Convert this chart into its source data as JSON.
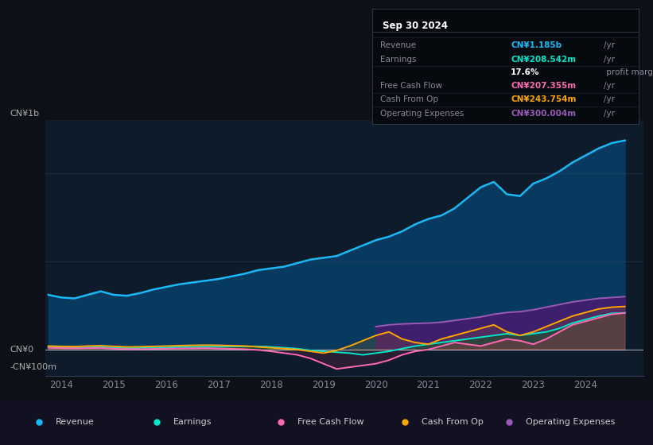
{
  "bg_color": "#0d1117",
  "plot_bg_color": "#0d1b2a",
  "ylabel_top": "CN¥1b",
  "ylabel_zero": "CN¥0",
  "ylabel_neg": "-CN¥100m",
  "xmin": 2013.7,
  "xmax": 2025.1,
  "ymin": -150,
  "ymax": 1300,
  "legend": [
    {
      "label": "Revenue",
      "color": "#1ab8f5"
    },
    {
      "label": "Earnings",
      "color": "#00e5cc"
    },
    {
      "label": "Free Cash Flow",
      "color": "#ff69b4"
    },
    {
      "label": "Cash From Op",
      "color": "#ffa500"
    },
    {
      "label": "Operating Expenses",
      "color": "#9b59b6"
    }
  ],
  "years": [
    2013.75,
    2014.0,
    2014.25,
    2014.5,
    2014.75,
    2015.0,
    2015.25,
    2015.5,
    2015.75,
    2016.0,
    2016.25,
    2016.5,
    2016.75,
    2017.0,
    2017.25,
    2017.5,
    2017.75,
    2018.0,
    2018.25,
    2018.5,
    2018.75,
    2019.0,
    2019.25,
    2019.5,
    2019.75,
    2020.0,
    2020.25,
    2020.5,
    2020.75,
    2021.0,
    2021.25,
    2021.5,
    2021.75,
    2022.0,
    2022.25,
    2022.5,
    2022.75,
    2023.0,
    2023.25,
    2023.5,
    2023.75,
    2024.0,
    2024.25,
    2024.5,
    2024.75
  ],
  "revenue": [
    310,
    295,
    290,
    310,
    330,
    310,
    305,
    320,
    340,
    355,
    370,
    380,
    390,
    400,
    415,
    430,
    450,
    460,
    470,
    490,
    510,
    520,
    530,
    560,
    590,
    620,
    640,
    670,
    710,
    740,
    760,
    800,
    860,
    920,
    950,
    880,
    870,
    940,
    970,
    1010,
    1060,
    1100,
    1140,
    1170,
    1185
  ],
  "earnings": [
    15,
    12,
    10,
    12,
    14,
    10,
    8,
    9,
    11,
    12,
    14,
    15,
    16,
    16,
    17,
    18,
    18,
    15,
    10,
    5,
    -5,
    -10,
    -15,
    -20,
    -30,
    -20,
    -10,
    5,
    20,
    30,
    40,
    50,
    60,
    70,
    80,
    90,
    80,
    90,
    100,
    120,
    150,
    170,
    190,
    205,
    208
  ],
  "free_cash_flow": [
    10,
    8,
    7,
    8,
    9,
    5,
    3,
    2,
    4,
    5,
    6,
    7,
    8,
    6,
    4,
    2,
    -2,
    -10,
    -20,
    -30,
    -50,
    -80,
    -110,
    -100,
    -90,
    -80,
    -60,
    -30,
    -10,
    0,
    20,
    40,
    30,
    20,
    40,
    60,
    50,
    30,
    60,
    100,
    140,
    160,
    180,
    200,
    207
  ],
  "cash_from_op": [
    20,
    18,
    17,
    20,
    22,
    18,
    15,
    16,
    18,
    20,
    22,
    24,
    25,
    24,
    22,
    20,
    15,
    10,
    5,
    0,
    -10,
    -20,
    -5,
    20,
    50,
    80,
    100,
    60,
    40,
    30,
    60,
    80,
    100,
    120,
    140,
    100,
    80,
    100,
    130,
    160,
    190,
    210,
    230,
    240,
    244
  ],
  "operating_expenses": [
    0,
    0,
    0,
    0,
    0,
    0,
    0,
    0,
    0,
    0,
    0,
    0,
    0,
    0,
    0,
    0,
    0,
    0,
    0,
    0,
    0,
    0,
    0,
    0,
    0,
    130,
    140,
    145,
    148,
    150,
    155,
    165,
    175,
    185,
    200,
    210,
    215,
    225,
    240,
    255,
    270,
    280,
    290,
    295,
    300
  ],
  "revenue_color": "#1ab8f5",
  "earnings_color": "#00e5cc",
  "fcf_color": "#ff69b4",
  "cashop_color": "#ffa500",
  "opex_color": "#9b59b6",
  "tooltip": {
    "title": "Sep 30 2024",
    "rows": [
      {
        "label": "Revenue",
        "value": "CN¥1.185b",
        "unit": "/yr",
        "color": "#1ab8f5"
      },
      {
        "label": "Earnings",
        "value": "CN¥208.542m",
        "unit": "/yr",
        "color": "#00e5cc"
      },
      {
        "label": "",
        "value": "17.6%",
        "unit": " profit margin",
        "color": "#ffffff"
      },
      {
        "label": "Free Cash Flow",
        "value": "CN¥207.355m",
        "unit": "/yr",
        "color": "#ff69b4"
      },
      {
        "label": "Cash From Op",
        "value": "CN¥243.754m",
        "unit": "/yr",
        "color": "#ffa500"
      },
      {
        "label": "Operating Expenses",
        "value": "CN¥300.004m",
        "unit": "/yr",
        "color": "#9b59b6"
      }
    ]
  }
}
